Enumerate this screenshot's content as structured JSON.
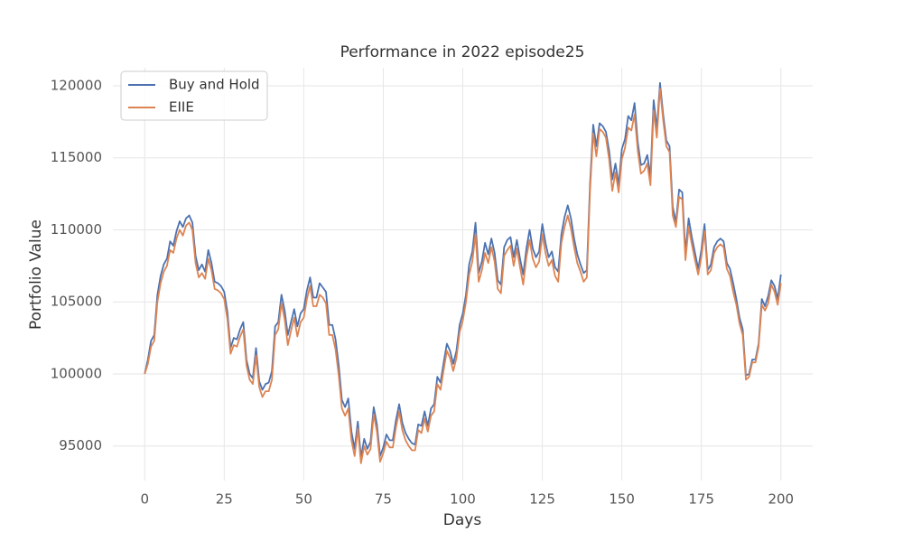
{
  "chart_data": {
    "type": "line",
    "title": "Performance in 2022 episode25",
    "x_label": "Days",
    "y_label": "Portfolio Value",
    "x": [
      0,
      1,
      2,
      3,
      4,
      5,
      6,
      7,
      8,
      9,
      10,
      11,
      12,
      13,
      14,
      15,
      16,
      17,
      18,
      19,
      20,
      21,
      22,
      23,
      24,
      25,
      26,
      27,
      28,
      29,
      30,
      31,
      32,
      33,
      34,
      35,
      36,
      37,
      38,
      39,
      40,
      41,
      42,
      43,
      44,
      45,
      46,
      47,
      48,
      49,
      50,
      51,
      52,
      53,
      54,
      55,
      56,
      57,
      58,
      59,
      60,
      61,
      62,
      63,
      64,
      65,
      66,
      67,
      68,
      69,
      70,
      71,
      72,
      73,
      74,
      75,
      76,
      77,
      78,
      79,
      80,
      81,
      82,
      83,
      84,
      85,
      86,
      87,
      88,
      89,
      90,
      91,
      92,
      93,
      94,
      95,
      96,
      97,
      98,
      99,
      100,
      101,
      102,
      103,
      104,
      105,
      106,
      107,
      108,
      109,
      110,
      111,
      112,
      113,
      114,
      115,
      116,
      117,
      118,
      119,
      120,
      121,
      122,
      123,
      124,
      125,
      126,
      127,
      128,
      129,
      130,
      131,
      132,
      133,
      134,
      135,
      136,
      137,
      138,
      139,
      140,
      141,
      142,
      143,
      144,
      145,
      146,
      147,
      148,
      149,
      150,
      151,
      152,
      153,
      154,
      155,
      156,
      157,
      158,
      159,
      160,
      161,
      162,
      163,
      164,
      165,
      166,
      167,
      168,
      169,
      170,
      171,
      172,
      173,
      174,
      175,
      176,
      177,
      178,
      179,
      180,
      181,
      182,
      183,
      184,
      185,
      186,
      187,
      188,
      189,
      190,
      191,
      192,
      193,
      194,
      195,
      196,
      197,
      198,
      199,
      200
    ],
    "series": [
      {
        "name": "Buy and Hold",
        "color": "#4c72b0",
        "values": [
          100000,
          101000,
          102300,
          102700,
          105500,
          106800,
          107600,
          108000,
          109200,
          108900,
          109900,
          110600,
          110200,
          110800,
          111000,
          110500,
          108200,
          107200,
          107600,
          107100,
          108600,
          107700,
          106400,
          106300,
          106100,
          105700,
          104300,
          101800,
          102500,
          102400,
          103100,
          103600,
          101000,
          100000,
          99700,
          101800,
          99500,
          98900,
          99300,
          99400,
          100200,
          103300,
          103600,
          105500,
          104400,
          102700,
          103600,
          104500,
          103300,
          104200,
          104500,
          105800,
          106700,
          105300,
          105300,
          106300,
          106000,
          105700,
          103400,
          103400,
          102400,
          100600,
          98200,
          97700,
          98300,
          96000,
          94800,
          96700,
          94200,
          95500,
          94800,
          95300,
          97700,
          96500,
          94300,
          94900,
          95800,
          95400,
          95400,
          96800,
          97900,
          96600,
          95900,
          95500,
          95200,
          95100,
          96500,
          96400,
          97400,
          96400,
          97600,
          97900,
          99800,
          99400,
          100800,
          102100,
          101600,
          100700,
          101600,
          103400,
          104200,
          105500,
          107600,
          108500,
          110500,
          107000,
          107800,
          109100,
          108300,
          109400,
          108400,
          106500,
          106200,
          108800,
          109300,
          109500,
          108100,
          109300,
          108000,
          106900,
          108700,
          110000,
          108700,
          108100,
          108500,
          110400,
          109100,
          108100,
          108500,
          107400,
          107100,
          109700,
          110900,
          111700,
          110800,
          109400,
          108300,
          107600,
          107000,
          107200,
          113200,
          117300,
          115800,
          117400,
          117200,
          116800,
          115500,
          113500,
          114600,
          113100,
          115600,
          116300,
          117900,
          117600,
          118800,
          116100,
          114500,
          114600,
          115200,
          113700,
          119000,
          117000,
          120200,
          118000,
          116200,
          115800,
          111600,
          110500,
          112800,
          112600,
          108400,
          110800,
          109500,
          108400,
          107300,
          108600,
          110400,
          107200,
          107600,
          108800,
          109200,
          109400,
          109200,
          107700,
          107300,
          106300,
          105200,
          103900,
          103100,
          99900,
          100000,
          101000,
          101000,
          102100,
          105200,
          104700,
          105400,
          106500,
          106100,
          105200,
          106900
        ]
      },
      {
        "name": "EIIE",
        "color": "#dd8452",
        "values": [
          100000,
          100700,
          101900,
          102300,
          105000,
          106300,
          107100,
          107500,
          108600,
          108400,
          109400,
          110000,
          109600,
          110300,
          110500,
          110000,
          107700,
          106700,
          107000,
          106600,
          108000,
          107200,
          105900,
          105800,
          105600,
          105200,
          103800,
          101400,
          102000,
          101900,
          102600,
          103100,
          100600,
          99600,
          99300,
          101300,
          99100,
          98400,
          98800,
          98800,
          99600,
          102700,
          103100,
          104900,
          103800,
          102000,
          103000,
          103900,
          102600,
          103600,
          103900,
          105200,
          106100,
          104700,
          104700,
          105500,
          105300,
          104900,
          102700,
          102700,
          101700,
          99900,
          97600,
          97100,
          97600,
          95400,
          94300,
          96200,
          93800,
          95000,
          94400,
          94800,
          97200,
          96000,
          93900,
          94500,
          95300,
          94900,
          94900,
          96300,
          97400,
          96100,
          95400,
          95000,
          94700,
          94700,
          96100,
          95900,
          96900,
          96000,
          97100,
          97400,
          99300,
          98900,
          100300,
          101600,
          101100,
          100200,
          101100,
          102900,
          103700,
          105000,
          106900,
          107800,
          109700,
          106400,
          107200,
          108400,
          107700,
          108800,
          107800,
          105900,
          105600,
          108200,
          108600,
          108900,
          107500,
          108700,
          107400,
          106200,
          108100,
          109300,
          108000,
          107400,
          107800,
          109700,
          108400,
          107500,
          107900,
          106800,
          106400,
          109100,
          110200,
          111000,
          110100,
          108800,
          107700,
          107100,
          106400,
          106700,
          112700,
          116700,
          115100,
          117000,
          116800,
          116400,
          114900,
          112700,
          114000,
          112600,
          114900,
          115700,
          117100,
          116900,
          118000,
          115500,
          113900,
          114100,
          114600,
          113100,
          118300,
          116400,
          119800,
          117600,
          115800,
          115400,
          111000,
          110200,
          112300,
          112100,
          107900,
          110200,
          109000,
          107900,
          106900,
          108100,
          109900,
          106900,
          107200,
          108400,
          108800,
          109000,
          108800,
          107300,
          106800,
          105700,
          104800,
          103500,
          102700,
          99600,
          99800,
          100800,
          100800,
          101900,
          104800,
          104400,
          104900,
          106200,
          105700,
          104800,
          106300
        ]
      }
    ],
    "xlim": [
      -10,
      210
    ],
    "xticks": [
      0,
      25,
      50,
      75,
      100,
      125,
      150,
      175,
      200
    ],
    "ylim": [
      92600,
      121000
    ],
    "yticks": [
      95000,
      100000,
      105000,
      110000,
      115000,
      120000
    ],
    "grid": true,
    "legend": "upper left"
  }
}
